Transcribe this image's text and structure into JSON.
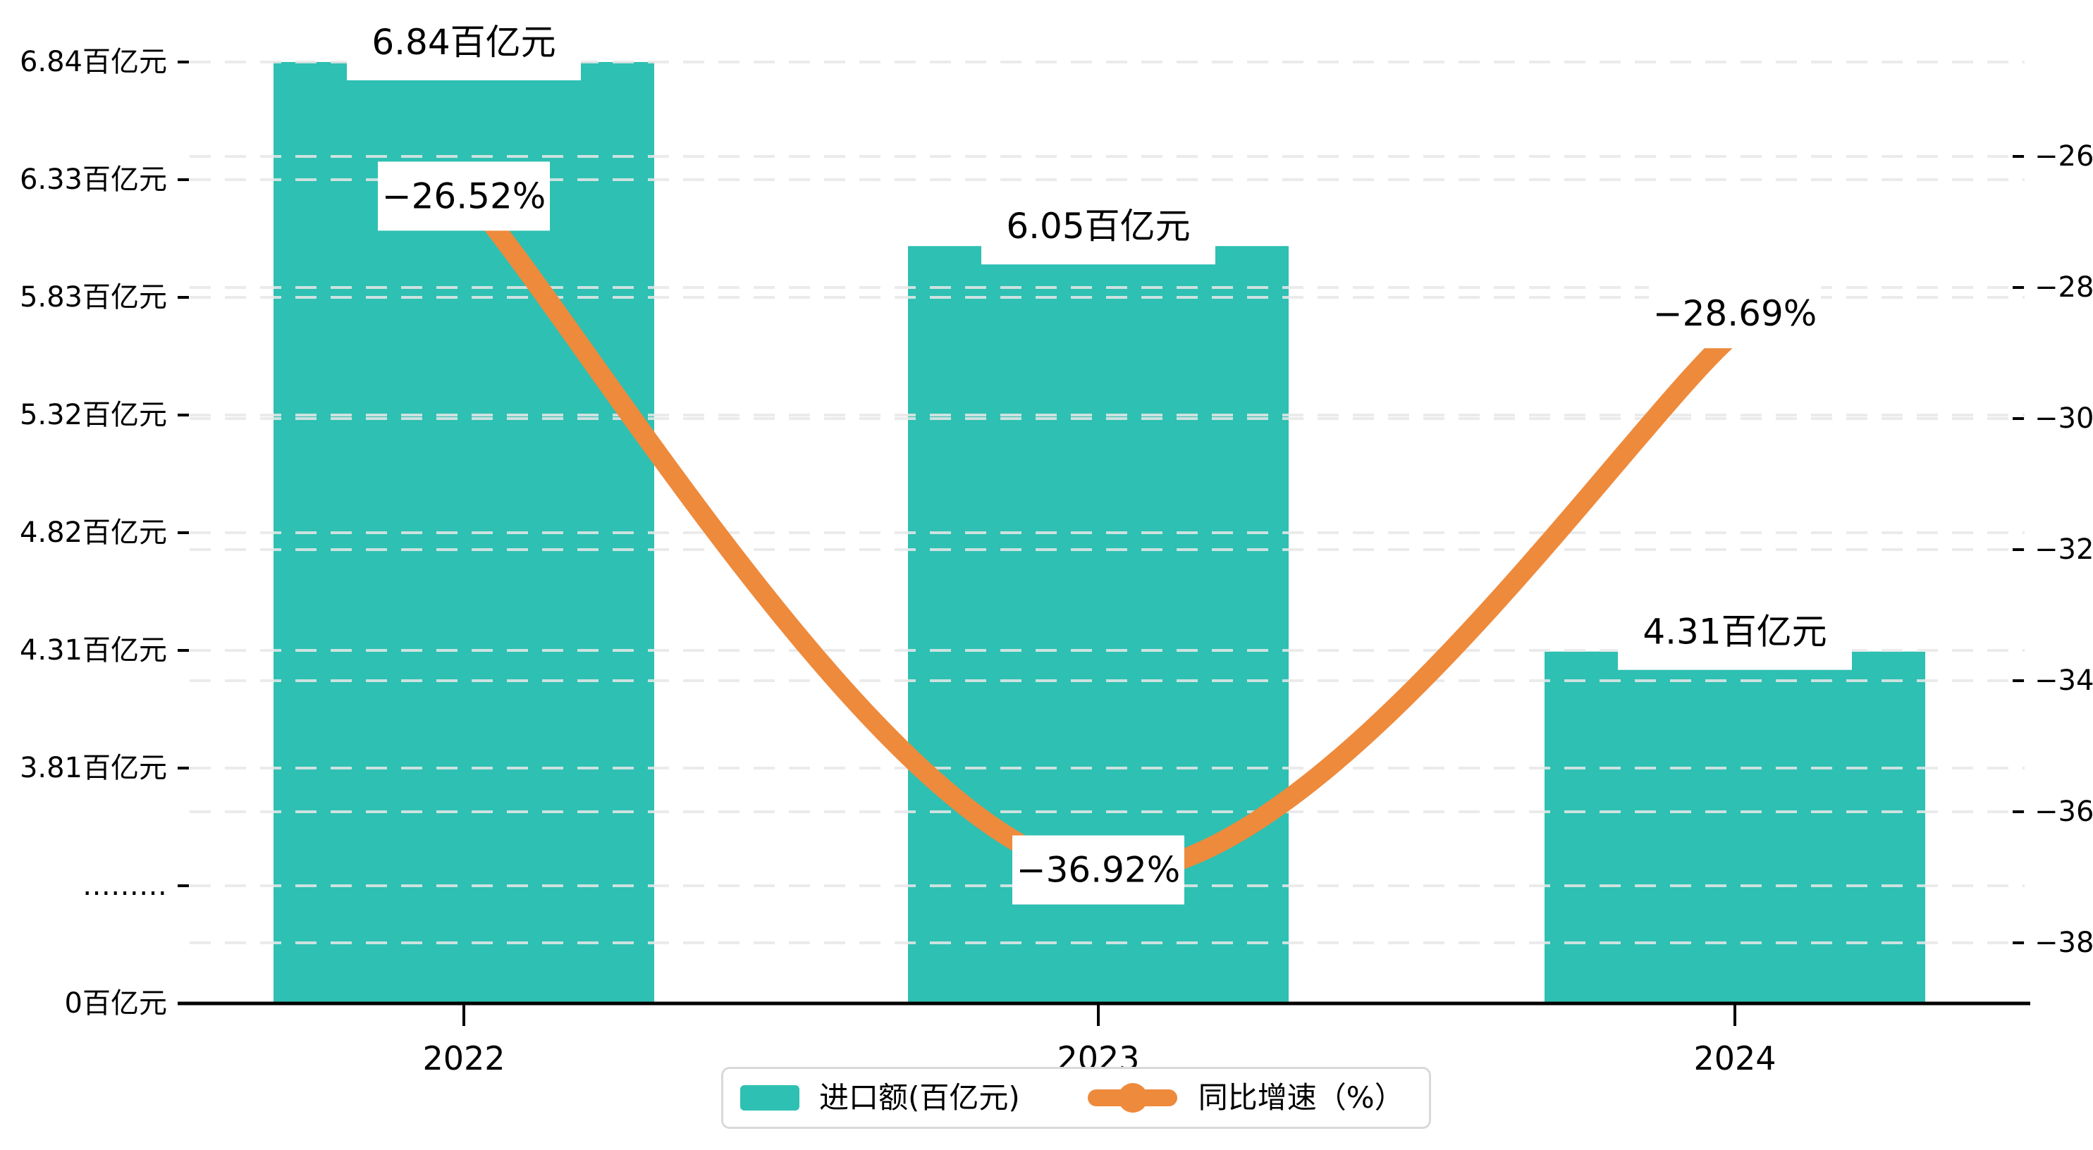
{
  "chart_data": {
    "type": "bar",
    "subtype": "bar-line-combo",
    "categories": [
      "2022",
      "2023",
      "2024"
    ],
    "series": [
      {
        "name": "进口额(百亿元)",
        "type": "bar",
        "values": [
          6.84,
          6.05,
          4.31
        ],
        "unit": "百亿元",
        "color": "#2ec0b2",
        "axis": "left",
        "data_labels": [
          "6.84百亿元",
          "6.05百亿元",
          "4.31百亿元"
        ]
      },
      {
        "name": "同比增速（%）",
        "type": "line",
        "values": [
          -26.52,
          -36.92,
          -28.69
        ],
        "unit": "%",
        "color": "#ee8a3c",
        "axis": "right",
        "smooth": true,
        "data_labels": [
          "−26.52%",
          "−36.92%",
          "−28.69%"
        ]
      }
    ],
    "left_axis": {
      "tick_labels_bottom_to_top": [
        "0百亿元",
        "………",
        "3.81百亿元",
        "4.31百亿元",
        "4.82百亿元",
        "5.32百亿元",
        "5.83百亿元",
        "6.33百亿元",
        "6.84百亿元"
      ],
      "broken_axis": true,
      "max": 6.84,
      "min": 0
    },
    "right_axis": {
      "tick_values_top_to_bottom": [
        -26,
        -28,
        -30,
        -32,
        -34,
        -36,
        -38
      ],
      "tick_labels_top_to_bottom": [
        "−26",
        "−28",
        "−30",
        "−32",
        "−34",
        "−36",
        "−38"
      ],
      "max": -26,
      "min": -38
    },
    "grid": "dashed-horizontal",
    "legend_position": "bottom-center",
    "title": ""
  },
  "legend": {
    "items": [
      {
        "label": "进口额(百亿元)",
        "marker": "bar-swatch",
        "color": "#2ec0b2"
      },
      {
        "label": "同比增速（%）",
        "marker": "line-dot",
        "color": "#ee8a3c"
      }
    ]
  },
  "colors": {
    "bar": "#2ec0b2",
    "line": "#ee8a3c",
    "axis": "#000000",
    "gridline": "#e8e8e8",
    "label_text": "#000000",
    "label_box": "#ffffff",
    "legend_border": "#d9d9d9"
  }
}
